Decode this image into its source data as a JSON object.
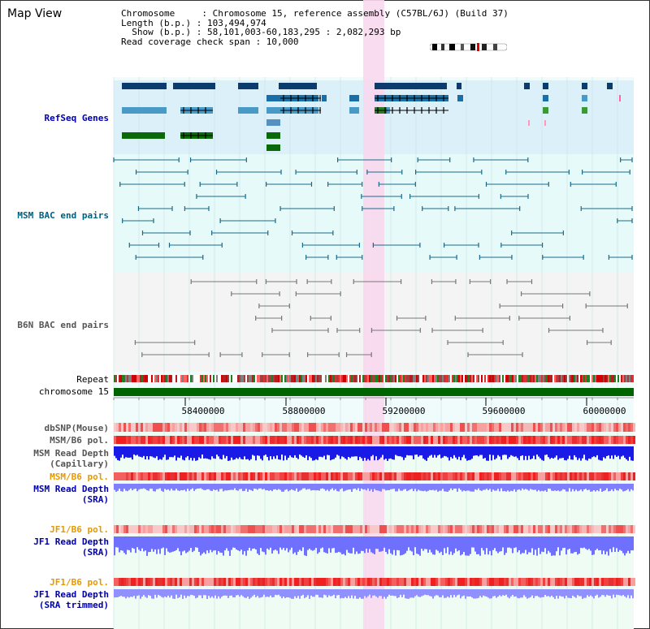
{
  "window_title": "Map View",
  "header": {
    "line1": "Chromosome     : Chromosome 15, reference assembly (C57BL/6J) (Build 37)",
    "line2": "Length (b.p.) : 103,494,974",
    "line3": "  Show (b.p.) : 58,101,003-60,183,295 : 2,082,293 bp",
    "line4": "Read coverage check span : 10,000"
  },
  "tracks": {
    "refseq": "RefSeq Genes",
    "msm_bac": "MSM BAC end pairs",
    "b6n_bac": "B6N BAC end pairs",
    "repeat": "Repeat",
    "chromosome": "chromosome 15",
    "dbsnp": "dbSNP(Mouse)",
    "msm_b6_pol": "MSM/B6 pol.",
    "msm_depth_cap_1": "MSM Read Depth",
    "msm_depth_cap_2": "(Capillary)",
    "msm_b6_pol_sra": "MSM/B6 pol.",
    "msm_depth_sra_1": "MSM Read Depth",
    "msm_depth_sra_2": "(SRA)",
    "jf1_b6_pol": "JF1/B6 pol.",
    "jf1_depth_1": "JF1 Read Depth",
    "jf1_depth_2": "(SRA)",
    "jf1_b6_pol_2": "JF1/B6 pol.",
    "jf1_trim_1": "JF1 Read Depth",
    "jf1_trim_2": "(SRA trimmed)"
  },
  "axis_ticks": [
    "58400000",
    "58800000",
    "59200000",
    "59600000",
    "60000000"
  ],
  "colors": {
    "refseq_bg": "#dcf0fa",
    "msm_bg": "#e6fafa",
    "b6n_bg": "#f2f2f2",
    "highlight": "#f8d8ee",
    "chromosome": "#006400",
    "depth_dark": "#1a1ae6",
    "depth_light": "#8080ff",
    "pol_red": "#f04040",
    "label_blue": "#0000aa",
    "label_orange": "#e69900",
    "label_teal": "#006080"
  }
}
